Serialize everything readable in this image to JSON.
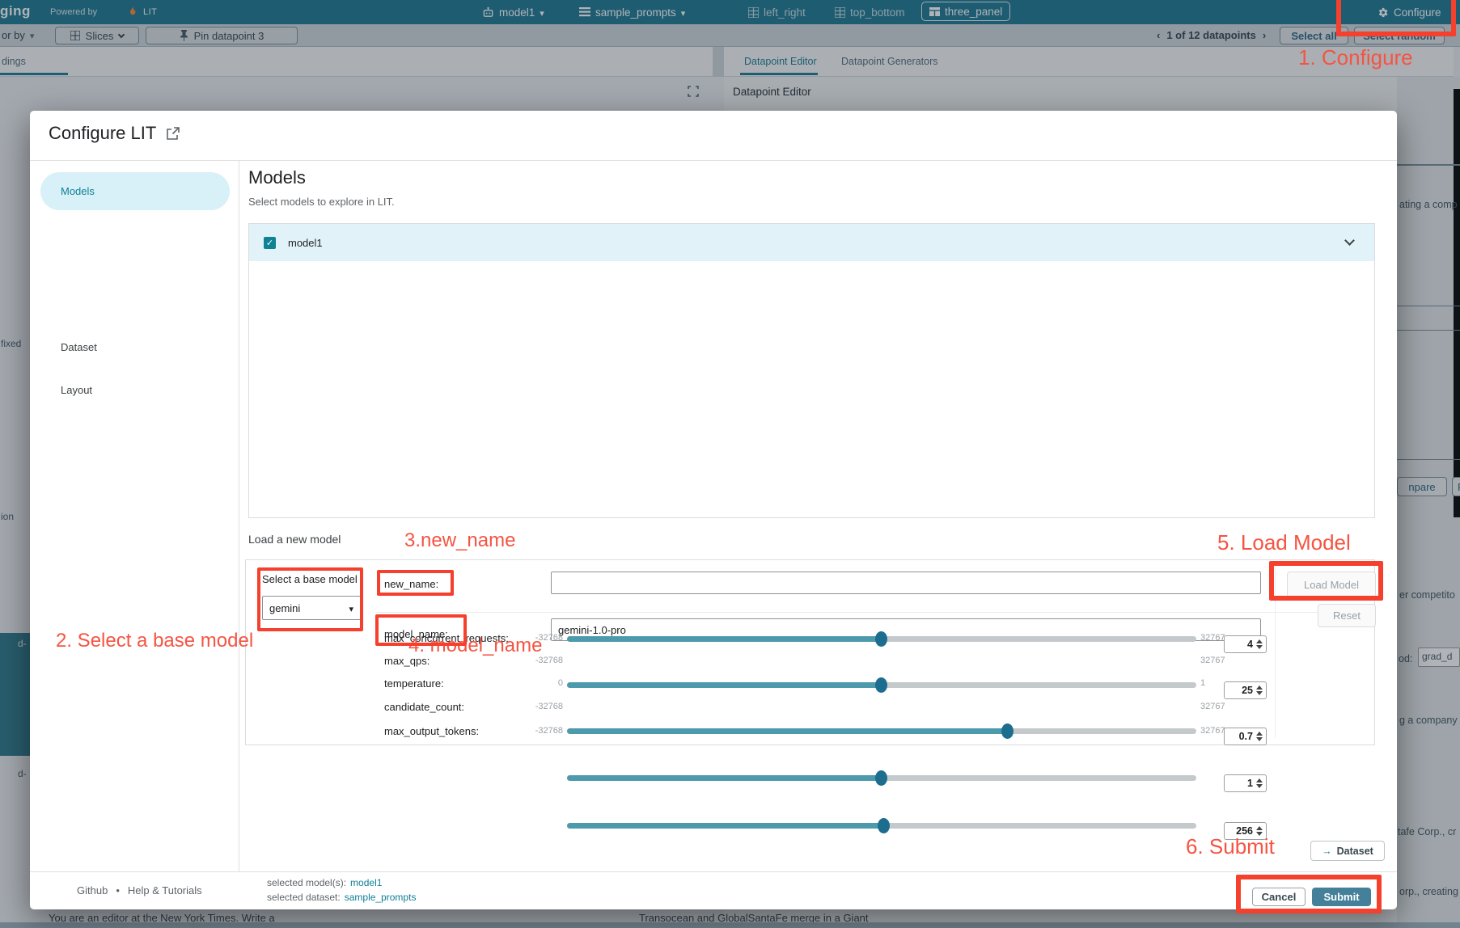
{
  "annotations": {
    "step1": "1. Configure",
    "step2": "2. Select a base model",
    "step3": "3.new_name",
    "step4": "4. model_name",
    "step5": "5. Load Model",
    "step6": "6. Submit"
  },
  "topbar": {
    "app_name_fragment": "ging",
    "powered_by": "Powered by",
    "lit": "LIT",
    "model_selector": "model1",
    "dataset_selector": "sample_prompts",
    "layout_tabs": {
      "left_right": "left_right",
      "top_bottom": "top_bottom",
      "three_panel": "three_panel"
    },
    "configure": "Configure"
  },
  "toolbar": {
    "color_by_fragment": "or by",
    "slices": "Slices",
    "pin_datapoint": "Pin datapoint 3",
    "pagination": "1 of 12 datapoints",
    "select_all": "Select all",
    "select_random": "Select random"
  },
  "background": {
    "left_tab": "dings",
    "tab_editor": "Datapoint Editor",
    "tab_generators": "Datapoint Generators",
    "panel_title": "Datapoint Editor",
    "frag_fixed": "fixed",
    "frag_ion": "ion",
    "frag_d1": "d-",
    "frag_d2": "d-",
    "frag_ating": "ating a comp",
    "frag_npare": "npare",
    "frag_f": "F",
    "frag_competito": "er competito",
    "frag_od": "od:",
    "frag_grad": "grad_d",
    "frag_company": "g a company",
    "frag_tafe": "tafe Corp., cr",
    "frag_orp": "orp., creating",
    "bottom_left": "You are an editor at the New York Times. Write a",
    "bottom_right": "Transocean and GlobalSantaFe merge in a Giant"
  },
  "modal": {
    "title": "Configure LIT",
    "nav": {
      "models": "Models",
      "dataset": "Dataset",
      "layout": "Layout"
    },
    "section_title": "Models",
    "section_subtitle": "Select models to explore in LIT.",
    "model_row": {
      "label": "model1",
      "checked": true
    },
    "load_section_label": "Load a new model",
    "base_model": {
      "label": "Select a base model",
      "value": "gemini"
    },
    "fields": [
      {
        "label": "new_name:",
        "value": ""
      },
      {
        "label": "model_name:",
        "value": "gemini-1.0-pro"
      }
    ],
    "sliders": [
      {
        "label": "max_concurrent_requests:",
        "min": "-32768",
        "max": "32767",
        "value": "4"
      },
      {
        "label": "max_qps:",
        "min": "-32768",
        "max": "32767",
        "value": "25"
      },
      {
        "label": "temperature:",
        "min": "0",
        "max": "1",
        "value": "0.7"
      },
      {
        "label": "candidate_count:",
        "min": "-32768",
        "max": "32767",
        "value": "1"
      },
      {
        "label": "max_output_tokens:",
        "min": "-32768",
        "max": "32767",
        "value": "256"
      }
    ],
    "load_model_btn": "Load Model",
    "reset_btn": "Reset",
    "dataset_btn": "Dataset",
    "footer": {
      "github": "Github",
      "help": "Help & Tutorials",
      "selected_model_label": "selected model(s):",
      "selected_model": "model1",
      "selected_dataset_label": "selected dataset:",
      "selected_dataset": "sample_prompts",
      "cancel": "Cancel",
      "submit": "Submit"
    }
  }
}
